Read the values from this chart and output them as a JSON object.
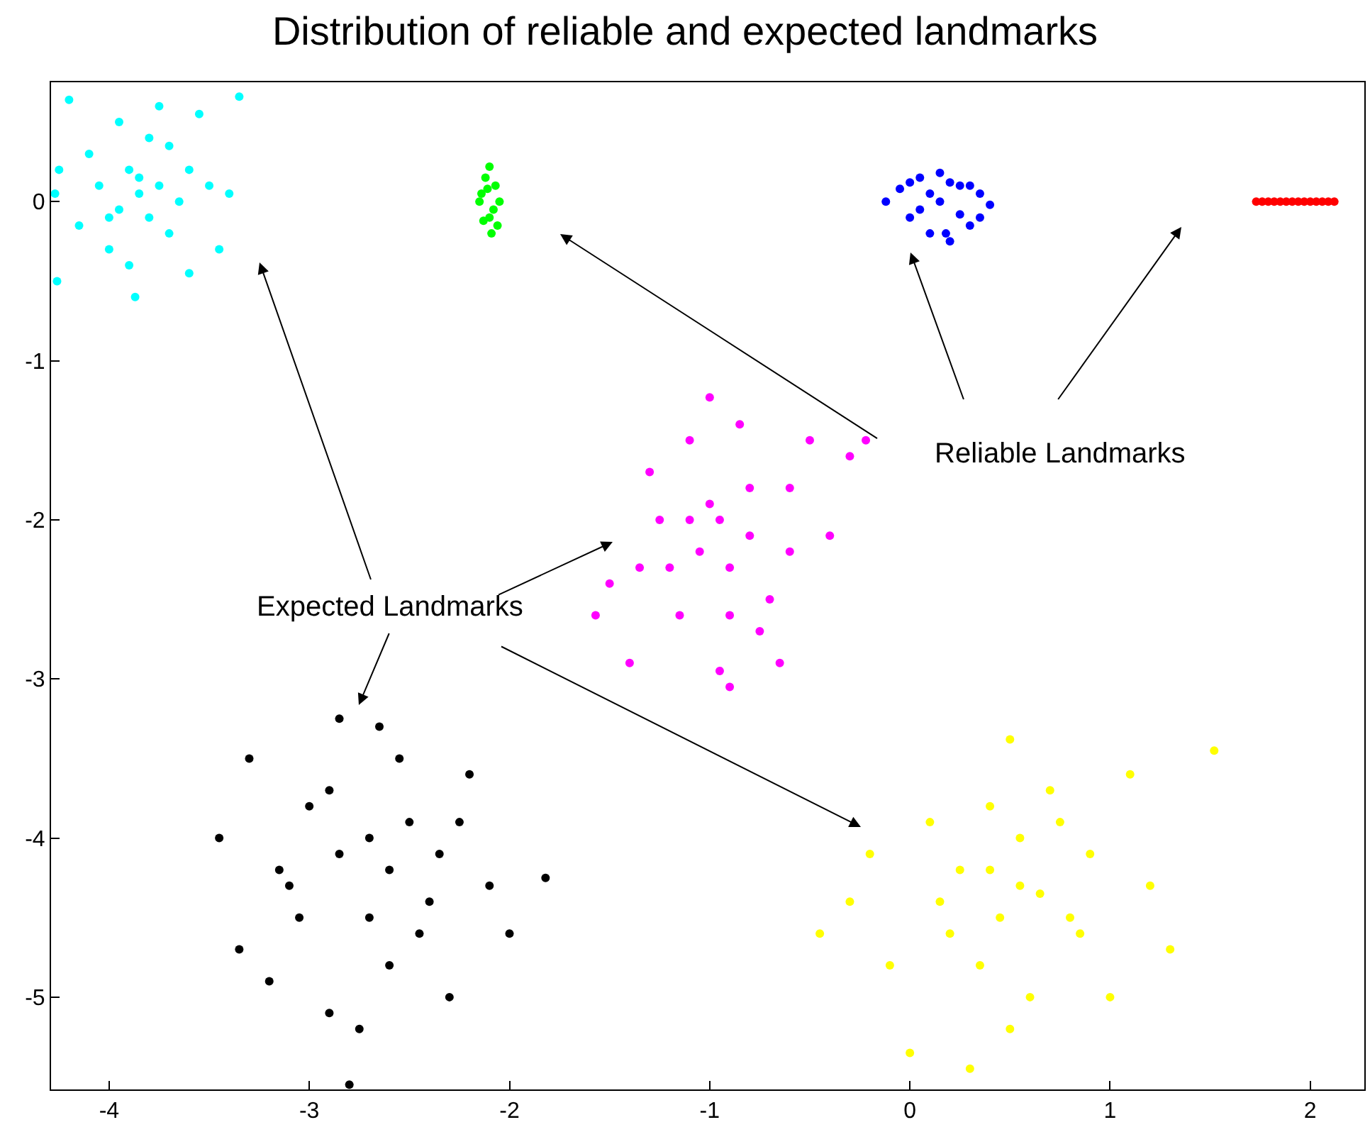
{
  "chart_data": {
    "type": "scatter",
    "title": "Distribution of reliable and expected landmarks",
    "marker": "circle",
    "xlim": [
      -4.29,
      2.27
    ],
    "ylim": [
      -5.58,
      0.75
    ],
    "xticks": [
      -4,
      -3,
      -2,
      -1,
      0,
      1,
      2
    ],
    "yticks": [
      -5,
      -4,
      -3,
      -2,
      -1,
      0
    ],
    "annotations": [
      "Reliable Landmarks",
      "Expected Landmarks"
    ],
    "series": [
      {
        "color": "#00ffff",
        "x": [
          -4.27,
          -4.26,
          -4.2,
          -4.1,
          -4.0,
          -3.95,
          -3.9,
          -3.85,
          -3.8,
          -3.75,
          -3.7,
          -3.6,
          -3.5,
          -3.4,
          -3.35,
          -3.87,
          -3.9,
          -4.05,
          -3.7,
          -3.6,
          -4.15,
          -3.8,
          -3.95,
          -3.65,
          -4.25,
          -3.55,
          -3.85,
          -4.0,
          -3.75,
          -3.45
        ],
        "values": [
          0.05,
          -0.5,
          0.64,
          0.3,
          -0.3,
          0.5,
          0.2,
          0.05,
          -0.1,
          0.6,
          0.35,
          0.2,
          0.1,
          0.05,
          0.66,
          -0.6,
          -0.4,
          0.1,
          -0.2,
          -0.45,
          -0.15,
          0.4,
          -0.05,
          0.0,
          0.2,
          0.55,
          0.15,
          -0.1,
          0.1,
          -0.3
        ]
      },
      {
        "color": "#00ff00",
        "x": [
          -2.15,
          -2.12,
          -2.1,
          -2.08,
          -2.05,
          -2.13,
          -2.09,
          -2.11,
          -2.07,
          -2.14,
          -2.1,
          -2.06
        ],
        "values": [
          0.0,
          0.15,
          0.22,
          -0.05,
          0.0,
          -0.12,
          -0.2,
          0.08,
          0.1,
          0.05,
          -0.1,
          -0.15
        ]
      },
      {
        "color": "#0000ff",
        "x": [
          -0.12,
          -0.05,
          0.0,
          0.05,
          0.1,
          0.15,
          0.2,
          0.25,
          0.3,
          0.35,
          0.4,
          0.05,
          0.15,
          0.25,
          0.1,
          0.2,
          0.3,
          0.0,
          0.35,
          0.18
        ],
        "values": [
          0.0,
          0.08,
          -0.1,
          0.15,
          -0.2,
          0.18,
          -0.25,
          0.1,
          -0.15,
          0.05,
          -0.02,
          -0.05,
          0.0,
          -0.08,
          0.05,
          0.12,
          0.1,
          0.12,
          -0.1,
          -0.2
        ]
      },
      {
        "color": "#ff0000",
        "x": [
          1.73,
          1.76,
          1.79,
          1.82,
          1.85,
          1.88,
          1.91,
          1.94,
          1.97,
          2.0,
          2.03,
          2.06,
          2.09,
          2.12
        ],
        "values": [
          0,
          0,
          0,
          0,
          0,
          0,
          0,
          0,
          0,
          0,
          0,
          0,
          0,
          0
        ]
      },
      {
        "color": "#ff00ff",
        "x": [
          -1.57,
          -1.5,
          -1.4,
          -1.3,
          -1.2,
          -1.1,
          -1.0,
          -0.95,
          -0.9,
          -0.8,
          -0.7,
          -0.6,
          -0.5,
          -0.4,
          -0.3,
          -0.22,
          -0.95,
          -1.0,
          -0.9,
          -1.15,
          -0.85,
          -1.25,
          -0.75,
          -1.05,
          -0.6,
          -1.35,
          -0.65,
          -1.1,
          -0.9,
          -0.8
        ],
        "values": [
          -2.6,
          -2.4,
          -2.9,
          -1.7,
          -2.3,
          -2.0,
          -1.23,
          -2.0,
          -3.05,
          -1.8,
          -2.5,
          -2.2,
          -1.5,
          -2.1,
          -1.6,
          -1.5,
          -2.95,
          -1.9,
          -2.3,
          -2.6,
          -1.4,
          -2.0,
          -2.7,
          -2.2,
          -1.8,
          -2.3,
          -2.9,
          -1.5,
          -2.6,
          -2.1
        ]
      },
      {
        "color": "#000000",
        "x": [
          -3.45,
          -3.35,
          -3.3,
          -3.2,
          -3.1,
          -3.0,
          -2.9,
          -2.85,
          -2.8,
          -2.7,
          -2.65,
          -2.6,
          -2.5,
          -2.4,
          -2.3,
          -2.2,
          -2.1,
          -2.0,
          -1.82,
          -2.85,
          -2.75,
          -2.6,
          -2.9,
          -3.15,
          -2.45,
          -2.25,
          -3.05,
          -2.7,
          -2.55,
          -2.35
        ],
        "values": [
          -4.0,
          -4.7,
          -3.5,
          -4.9,
          -4.3,
          -3.8,
          -5.1,
          -3.25,
          -5.55,
          -4.5,
          -3.3,
          -4.2,
          -3.9,
          -4.4,
          -5.0,
          -3.6,
          -4.3,
          -4.6,
          -4.25,
          -4.1,
          -5.2,
          -4.8,
          -3.7,
          -4.2,
          -4.6,
          -3.9,
          -4.5,
          -4.0,
          -3.5,
          -4.1
        ]
      },
      {
        "color": "#ffff00",
        "x": [
          -0.45,
          -0.3,
          -0.2,
          -0.1,
          0.0,
          0.1,
          0.2,
          0.3,
          0.4,
          0.5,
          0.55,
          0.6,
          0.7,
          0.8,
          0.9,
          1.0,
          1.1,
          1.2,
          1.3,
          1.52,
          0.45,
          0.55,
          0.35,
          0.65,
          0.25,
          0.75,
          0.5,
          0.15,
          0.85,
          0.4
        ],
        "values": [
          -4.6,
          -4.4,
          -4.1,
          -4.8,
          -5.35,
          -3.9,
          -4.6,
          -5.45,
          -4.2,
          -3.38,
          -4.3,
          -5.0,
          -3.7,
          -4.5,
          -4.1,
          -5.0,
          -3.6,
          -4.3,
          -4.7,
          -3.45,
          -4.5,
          -4.0,
          -4.8,
          -4.35,
          -4.2,
          -3.9,
          -5.2,
          -4.4,
          -4.6,
          -3.8
        ]
      }
    ]
  }
}
